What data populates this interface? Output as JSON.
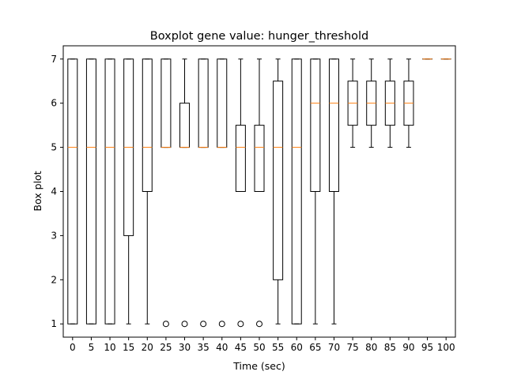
{
  "chart_data": {
    "type": "boxplot",
    "title": "Boxplot gene value: hunger_threshold",
    "xlabel": "Time (sec)",
    "ylabel": "Box plot",
    "ylim": [
      0.7,
      7.3
    ],
    "yticks": [
      1,
      2,
      3,
      4,
      5,
      6,
      7
    ],
    "grid": false,
    "colors": {
      "box": "#000000",
      "median": "#ff7f0e",
      "flier": "#000000"
    },
    "categories": [
      "0",
      "5",
      "10",
      "15",
      "20",
      "25",
      "30",
      "35",
      "40",
      "45",
      "50",
      "55",
      "60",
      "65",
      "70",
      "75",
      "80",
      "85",
      "90",
      "95",
      "100"
    ],
    "boxes": [
      {
        "label": "0",
        "whislo": 1,
        "q1": 1,
        "med": 5,
        "q3": 7,
        "whishi": 7,
        "fliers": []
      },
      {
        "label": "5",
        "whislo": 1,
        "q1": 1,
        "med": 5,
        "q3": 7,
        "whishi": 7,
        "fliers": []
      },
      {
        "label": "10",
        "whislo": 1,
        "q1": 1,
        "med": 5,
        "q3": 7,
        "whishi": 7,
        "fliers": []
      },
      {
        "label": "15",
        "whislo": 1,
        "q1": 3,
        "med": 5,
        "q3": 7,
        "whishi": 7,
        "fliers": []
      },
      {
        "label": "20",
        "whislo": 1,
        "q1": 4,
        "med": 5,
        "q3": 7,
        "whishi": 7,
        "fliers": []
      },
      {
        "label": "25",
        "whislo": 5,
        "q1": 5,
        "med": 5,
        "q3": 7,
        "whishi": 7,
        "fliers": [
          1
        ]
      },
      {
        "label": "30",
        "whislo": 5,
        "q1": 5,
        "med": 5,
        "q3": 6,
        "whishi": 7,
        "fliers": [
          1
        ]
      },
      {
        "label": "35",
        "whislo": 5,
        "q1": 5,
        "med": 5,
        "q3": 7,
        "whishi": 7,
        "fliers": [
          1
        ]
      },
      {
        "label": "40",
        "whislo": 5,
        "q1": 5,
        "med": 5,
        "q3": 7,
        "whishi": 7,
        "fliers": [
          1
        ]
      },
      {
        "label": "45",
        "whislo": 4,
        "q1": 4,
        "med": 5,
        "q3": 5.5,
        "whishi": 7,
        "fliers": [
          1
        ]
      },
      {
        "label": "50",
        "whislo": 4,
        "q1": 4,
        "med": 5,
        "q3": 5.5,
        "whishi": 7,
        "fliers": [
          1
        ]
      },
      {
        "label": "55",
        "whislo": 1,
        "q1": 2,
        "med": 5,
        "q3": 6.5,
        "whishi": 7,
        "fliers": []
      },
      {
        "label": "60",
        "whislo": 1,
        "q1": 1,
        "med": 5,
        "q3": 7,
        "whishi": 7,
        "fliers": []
      },
      {
        "label": "65",
        "whislo": 1,
        "q1": 4,
        "med": 6,
        "q3": 7,
        "whishi": 7,
        "fliers": []
      },
      {
        "label": "70",
        "whislo": 1,
        "q1": 4,
        "med": 6,
        "q3": 7,
        "whishi": 7,
        "fliers": []
      },
      {
        "label": "75",
        "whislo": 5,
        "q1": 5.5,
        "med": 6,
        "q3": 6.5,
        "whishi": 7,
        "fliers": []
      },
      {
        "label": "80",
        "whislo": 5,
        "q1": 5.5,
        "med": 6,
        "q3": 6.5,
        "whishi": 7,
        "fliers": []
      },
      {
        "label": "85",
        "whislo": 5,
        "q1": 5.5,
        "med": 6,
        "q3": 6.5,
        "whishi": 7,
        "fliers": []
      },
      {
        "label": "90",
        "whislo": 5,
        "q1": 5.5,
        "med": 6,
        "q3": 6.5,
        "whishi": 7,
        "fliers": []
      },
      {
        "label": "95",
        "whislo": 7,
        "q1": 7,
        "med": 7,
        "q3": 7,
        "whishi": 7,
        "fliers": []
      },
      {
        "label": "100",
        "whislo": 7,
        "q1": 7,
        "med": 7,
        "q3": 7,
        "whishi": 7,
        "fliers": []
      }
    ]
  }
}
